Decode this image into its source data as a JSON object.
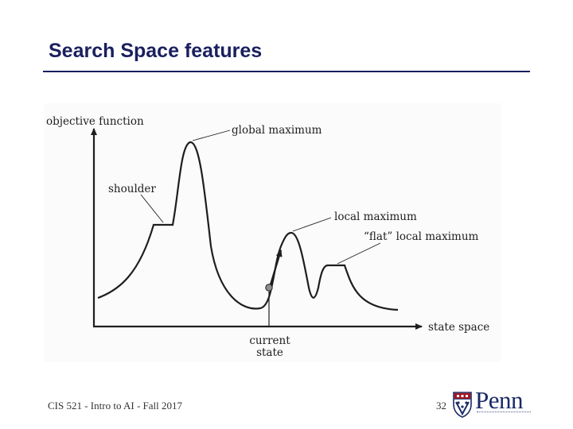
{
  "slide": {
    "title": "Search Space features"
  },
  "diagram": {
    "labels": {
      "y_axis": "objective function",
      "x_axis": "state space",
      "global_maximum": "global maximum",
      "shoulder": "shoulder",
      "local_maximum": "local maximum",
      "flat_local_maximum": "“flat” local maximum",
      "current_state_line1": "current",
      "current_state_line2": "state"
    }
  },
  "footer": {
    "course": "CIS 521 - Intro to AI - Fall 2017",
    "page_number": "32",
    "logo_text": "Penn"
  },
  "colors": {
    "title": "#1a1f5e",
    "logo_blue": "#1a2a66",
    "logo_red": "#a3141f"
  }
}
